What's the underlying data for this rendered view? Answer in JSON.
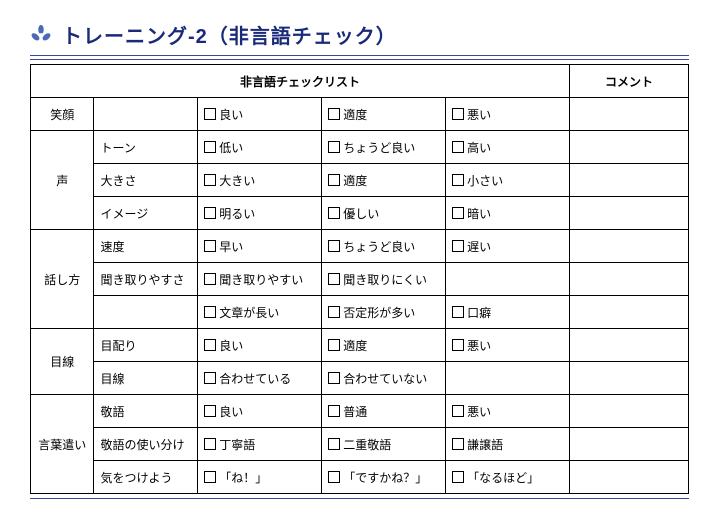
{
  "title": "トレーニング-2（非言語チェック）",
  "header": {
    "main": "非言語チェックリスト",
    "comment": "コメント"
  },
  "rows": [
    {
      "cat": "笑顔",
      "sub": "",
      "opts": [
        "良い",
        "適度",
        "悪い"
      ]
    },
    {
      "cat": "声",
      "sub": "トーン",
      "opts": [
        "低い",
        "ちょうど良い",
        "高い"
      ],
      "catspan": 3
    },
    {
      "sub": "大きさ",
      "opts": [
        "大きい",
        "適度",
        "小さい"
      ]
    },
    {
      "sub": "イメージ",
      "opts": [
        "明るい",
        "優しい",
        "暗い"
      ]
    },
    {
      "cat": "話し方",
      "sub": "速度",
      "opts": [
        "早い",
        "ちょうど良い",
        "遅い"
      ],
      "catspan": 3
    },
    {
      "sub": "聞き取りやすさ",
      "opts": [
        "聞き取りやすい",
        "聞き取りにくい",
        ""
      ]
    },
    {
      "sub": "",
      "opts": [
        "文章が長い",
        "否定形が多い",
        "口癖"
      ]
    },
    {
      "cat": "目線",
      "sub": "目配り",
      "opts": [
        "良い",
        "適度",
        "悪い"
      ],
      "catspan": 2
    },
    {
      "sub": "目線",
      "opts": [
        "合わせている",
        "合わせていない",
        ""
      ]
    },
    {
      "cat": "言葉遣い",
      "sub": "敬語",
      "opts": [
        "良い",
        "普通",
        "悪い"
      ],
      "catspan": 3
    },
    {
      "sub": "敬語の使い分け",
      "opts": [
        "丁寧語",
        "二重敬語",
        "謙譲語"
      ]
    },
    {
      "sub": "気をつけよう",
      "opts": [
        "「ね！」",
        "「ですかね？」",
        "「なるほど」"
      ]
    }
  ]
}
